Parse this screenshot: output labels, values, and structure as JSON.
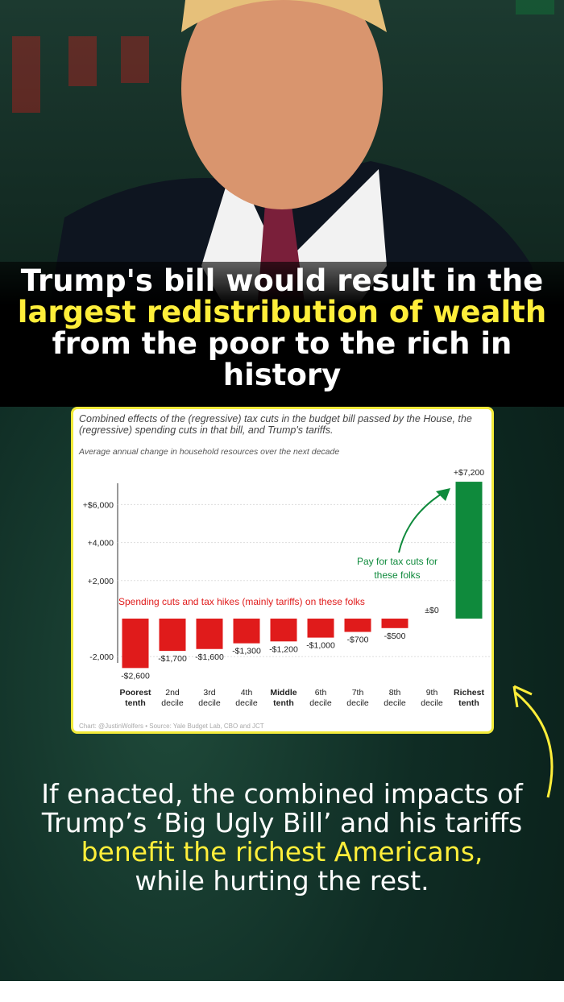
{
  "headline": {
    "pre": "Trump's bill would result in the ",
    "highlight": "largest redistribution of wealth",
    "post": " from the poor to the rich in history"
  },
  "bottom_text": {
    "pre": "If enacted, the combined impacts of Trump’s ‘Big Ugly Bill’ and his tariffs ",
    "highlight": "benefit the richest Americans,",
    "post": " while hurting the rest."
  },
  "colors": {
    "negative": "#e01b1b",
    "positive": "#0f8a3c",
    "highlight": "#ffee3a",
    "card_border": "#f2ea3a"
  },
  "chart_data": {
    "type": "bar",
    "title": "Combined effects of the (regressive) tax cuts in the budget bill passed by the House, the (regressive) spending cuts in that bill, and Trump's tariffs.",
    "subtitle": "Average annual change in household resources over the next decade",
    "categories": [
      [
        "Poorest",
        "tenth"
      ],
      [
        "2nd",
        "decile"
      ],
      [
        "3rd",
        "decile"
      ],
      [
        "4th",
        "decile"
      ],
      [
        "Middle",
        "tenth"
      ],
      [
        "6th",
        "decile"
      ],
      [
        "7th",
        "decile"
      ],
      [
        "8th",
        "decile"
      ],
      [
        "9th",
        "decile"
      ],
      [
        "Richest",
        "tenth"
      ]
    ],
    "values": [
      -2600,
      -1700,
      -1600,
      -1300,
      -1200,
      -1000,
      -700,
      -500,
      0,
      7200
    ],
    "data_labels": [
      "-$2,600",
      "-$1,700",
      "-$1,600",
      "-$1,300",
      "-$1,200",
      "-$1,000",
      "-$700",
      "-$500",
      "±$0",
      "+$7,200"
    ],
    "yticks": [
      {
        "v": 6000,
        "label": "+$6,000"
      },
      {
        "v": 4000,
        "label": "+4,000"
      },
      {
        "v": 2000,
        "label": "+2,000"
      },
      {
        "v": -2000,
        "label": "-2,000"
      }
    ],
    "ylim": [
      -2800,
      7600
    ],
    "grid": true,
    "annotations": {
      "positive": "Pay for tax cuts for these folks",
      "negative": "Spending cuts and tax hikes (mainly tariffs) on these folks"
    },
    "credit": "Chart: @JustinWolfers • Source: Yale Budget Lab, CBO and JCT"
  }
}
